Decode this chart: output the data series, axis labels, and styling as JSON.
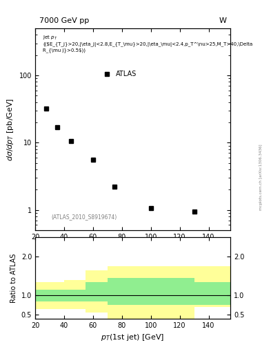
{
  "title_left": "7000 GeV pp",
  "title_right": "W",
  "watermark": "(ATLAS_2010_S8919674)",
  "side_label": "mcplots.cern.ch [arXiv:1306.3436]",
  "obs_label": "Jet p_{T} ((E_{T_{j}}>20,|\\eta_{j}|<2.8,E_{T_{\\mu}}>20,|\\eta_{\\mu}|<2.4,p_T^{\\nu}>25,M_T>40,\\Delta R_{\\mu j}>0.5))",
  "legend_label": "ATLAS",
  "xlabel": "p_{T}(1st jet) [GeV]",
  "ylabel": "d\\sigma/dp_{T} [pb/GeV]",
  "ratio_ylabel": "Ratio to ATLAS",
  "data_x": [
    27.5,
    35.0,
    45.0,
    60.0,
    75.0,
    100.0,
    130.0
  ],
  "data_y": [
    32.0,
    17.0,
    10.5,
    5.5,
    2.2,
    1.05,
    0.95
  ],
  "xlim": [
    20,
    155
  ],
  "ylim_main": [
    0.5,
    500
  ],
  "ylim_ratio": [
    0.4,
    2.5
  ],
  "ratio_yticks": [
    0.5,
    1.0,
    2.0
  ],
  "ratio_band_green_x": [
    20,
    40,
    55,
    70,
    90,
    130,
    155
  ],
  "ratio_band_green_ylo": [
    0.85,
    0.85,
    0.85,
    0.75,
    0.75,
    0.75,
    0.75
  ],
  "ratio_band_green_yhi": [
    1.15,
    1.15,
    1.35,
    1.45,
    1.45,
    1.35,
    1.35
  ],
  "ratio_band_yellow_x": [
    20,
    40,
    55,
    70,
    90,
    130,
    155
  ],
  "ratio_band_yellow_ylo": [
    0.65,
    0.65,
    0.55,
    0.4,
    0.4,
    0.7,
    0.7
  ],
  "ratio_band_yellow_yhi": [
    1.35,
    1.4,
    1.65,
    1.75,
    1.75,
    1.75,
    1.75
  ],
  "background_color": "#ffffff",
  "marker_color": "#000000",
  "green_color": "#90ee90",
  "yellow_color": "#ffff99"
}
